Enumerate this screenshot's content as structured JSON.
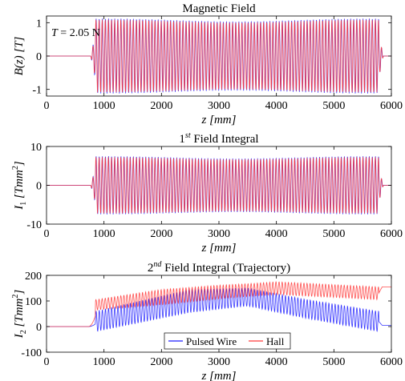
{
  "chart_data": [
    {
      "type": "line",
      "title": "Magnetic Field",
      "annotation": "T = 2.05 N",
      "xlabel": "z [mm]",
      "ylabel": "B(z) [T]",
      "xlim": [
        0,
        6000
      ],
      "ylim": [
        -1.2,
        1.2
      ],
      "xticks": [
        0,
        1000,
        2000,
        3000,
        4000,
        5000,
        6000
      ],
      "yticks": [
        -1,
        0,
        1
      ],
      "grid": false,
      "series": [
        {
          "name": "Pulsed Wire",
          "color": "#1f1fff",
          "shape": "undulator oscillation",
          "flat_level": 0,
          "start_mm": 850,
          "end_mm": 5780,
          "amplitude": 1.08
        },
        {
          "name": "Hall",
          "color": "#ff3b3b",
          "shape": "undulator oscillation",
          "flat_level": 0,
          "start_mm": 850,
          "end_mm": 5780,
          "amplitude": 1.05
        }
      ]
    },
    {
      "type": "line",
      "title": "1st Field Integral",
      "xlabel": "z [mm]",
      "ylabel": "I1 [Tmm2]",
      "xlim": [
        0,
        6000
      ],
      "ylim": [
        -10,
        10
      ],
      "xticks": [
        0,
        1000,
        2000,
        3000,
        4000,
        5000,
        6000
      ],
      "yticks": [
        -10,
        0,
        10
      ],
      "grid": false,
      "series": [
        {
          "name": "Pulsed Wire",
          "color": "#1f1fff",
          "shape": "undulator oscillation",
          "flat_level": 0,
          "start_mm": 850,
          "end_mm": 5780,
          "amplitude": 7.2
        },
        {
          "name": "Hall",
          "color": "#ff3b3b",
          "shape": "undulator oscillation",
          "flat_level": 0,
          "start_mm": 850,
          "end_mm": 5780,
          "amplitude": 7.0
        }
      ]
    },
    {
      "type": "line",
      "title": "2nd Field Integral (Trajectory)",
      "xlabel": "z [mm]",
      "ylabel": "I2 [Tmm2]",
      "xlim": [
        0,
        6000
      ],
      "ylim": [
        -100,
        200
      ],
      "xticks": [
        0,
        1000,
        2000,
        3000,
        4000,
        5000,
        6000
      ],
      "yticks": [
        -100,
        0,
        100,
        200
      ],
      "grid": false,
      "legend": "bottom-center",
      "series": [
        {
          "name": "Pulsed Wire",
          "color": "#1f1fff",
          "shape": "oscillation around drifting centre",
          "centre": [
            [
              850,
              20
            ],
            [
              2500,
              100
            ],
            [
              3500,
              115
            ],
            [
              4500,
              70
            ],
            [
              5780,
              20
            ]
          ],
          "amplitude": [
            [
              850,
              40
            ],
            [
              2500,
              45
            ],
            [
              3500,
              35
            ],
            [
              5780,
              40
            ]
          ],
          "end_level": 5
        },
        {
          "name": "Hall",
          "color": "#ff3b3b",
          "shape": "oscillation around drifting centre",
          "centre": [
            [
              850,
              85
            ],
            [
              2000,
              115
            ],
            [
              3000,
              135
            ],
            [
              4000,
              150
            ],
            [
              5780,
              130
            ]
          ],
          "amplitude": [
            [
              850,
              20
            ],
            [
              2000,
              30
            ],
            [
              3500,
              25
            ],
            [
              5780,
              25
            ]
          ],
          "end_level": 155
        }
      ]
    }
  ]
}
